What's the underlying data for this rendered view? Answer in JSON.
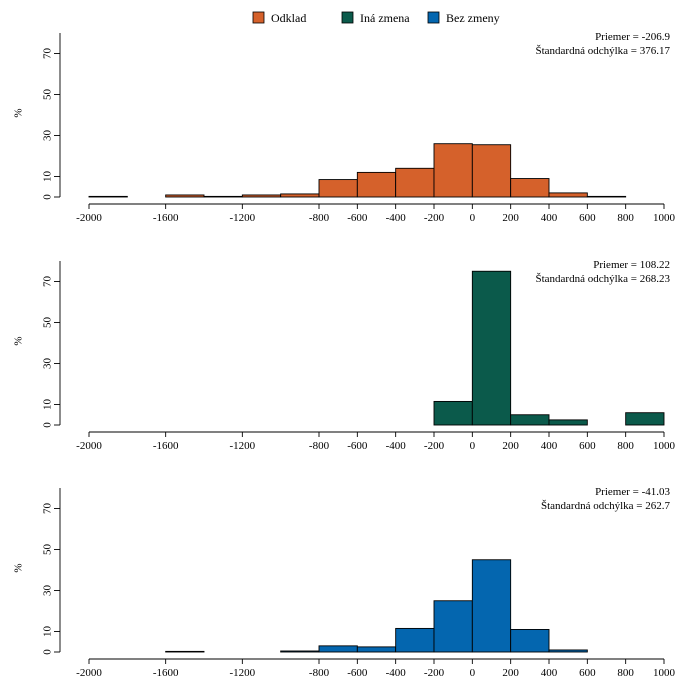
{
  "legend": {
    "items": [
      {
        "label": "Odklad",
        "color": "#D5612B"
      },
      {
        "label": "Iná zmena",
        "color": "#0B5A4B"
      },
      {
        "label": "Bez zmeny",
        "color": "#0466AF"
      }
    ]
  },
  "chart_data": [
    {
      "type": "bar",
      "series_name": "Odklad",
      "color": "#D5612B",
      "bin_edges": [
        -2000,
        -1800,
        -1600,
        -1400,
        -1200,
        -1000,
        -800,
        -600,
        -400,
        -200,
        0,
        200,
        400,
        600,
        800,
        1000
      ],
      "values": [
        0.3,
        0,
        1,
        0.3,
        1,
        1.5,
        8.5,
        12,
        14,
        26,
        25.5,
        9,
        2,
        0.3,
        0
      ],
      "xlim": [
        -2000,
        1000
      ],
      "ylim": [
        0,
        80
      ],
      "xticks": [
        -2000,
        -1600,
        -1200,
        -800,
        -600,
        -400,
        -200,
        0,
        200,
        400,
        600,
        800,
        1000
      ],
      "yticks": [
        0,
        10,
        30,
        50,
        70
      ],
      "ylabel": "%",
      "stats": {
        "mean": "Priemer = -206.9",
        "sd": "Štandardná odchýlka = 376.17"
      }
    },
    {
      "type": "bar",
      "series_name": "Iná zmena",
      "color": "#0B5A4B",
      "bin_edges": [
        -2000,
        -1800,
        -1600,
        -1400,
        -1200,
        -1000,
        -800,
        -600,
        -400,
        -200,
        0,
        200,
        400,
        600,
        800,
        1000
      ],
      "values": [
        0,
        0,
        0,
        0,
        0,
        0,
        0,
        0,
        0,
        11.5,
        75,
        5,
        2.5,
        0,
        6
      ],
      "xlim": [
        -2000,
        1000
      ],
      "ylim": [
        0,
        80
      ],
      "xticks": [
        -2000,
        -1600,
        -1200,
        -800,
        -600,
        -400,
        -200,
        0,
        200,
        400,
        600,
        800,
        1000
      ],
      "yticks": [
        0,
        10,
        30,
        50,
        70
      ],
      "ylabel": "%",
      "stats": {
        "mean": "Priemer = 108.22",
        "sd": "Štandardná odchýlka = 268.23"
      }
    },
    {
      "type": "bar",
      "series_name": "Bez zmeny",
      "color": "#0466AF",
      "bin_edges": [
        -2000,
        -1800,
        -1600,
        -1400,
        -1200,
        -1000,
        -800,
        -600,
        -400,
        -200,
        0,
        200,
        400,
        600,
        800,
        1000
      ],
      "values": [
        0,
        0,
        0.3,
        0,
        0,
        0.5,
        3,
        2.5,
        11.5,
        25,
        45,
        11,
        1,
        0,
        0
      ],
      "xlim": [
        -2000,
        1000
      ],
      "ylim": [
        0,
        80
      ],
      "xticks": [
        -2000,
        -1600,
        -1200,
        -800,
        -600,
        -400,
        -200,
        0,
        200,
        400,
        600,
        800,
        1000
      ],
      "yticks": [
        0,
        10,
        30,
        50,
        70
      ],
      "ylabel": "%",
      "stats": {
        "mean": "Priemer = -41.03",
        "sd": "Štandardná odchýlka = 262.7"
      }
    }
  ]
}
